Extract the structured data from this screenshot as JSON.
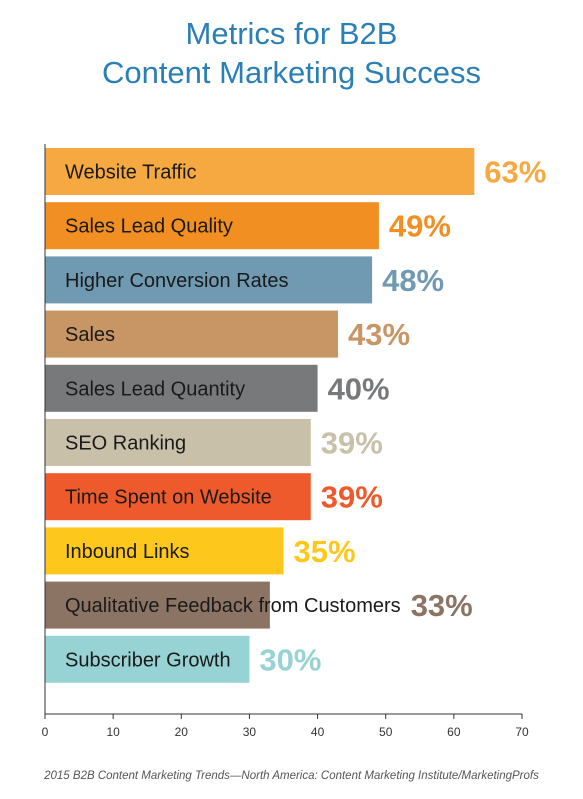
{
  "chart_data": {
    "type": "bar",
    "orientation": "horizontal",
    "title_line1": "Metrics for B2B",
    "title_line2": "Content Marketing Success",
    "categories": [
      "Website Traffic",
      "Sales Lead Quality",
      "Higher Conversion Rates",
      "Sales",
      "Sales Lead Quantity",
      "SEO Ranking",
      "Time Spent on Website",
      "Inbound Links",
      "Qualitative Feedback from Customers",
      "Subscriber Growth"
    ],
    "values": [
      63,
      49,
      48,
      43,
      40,
      39,
      39,
      35,
      33,
      30
    ],
    "value_labels": [
      "63%",
      "49%",
      "48%",
      "43%",
      "40%",
      "39%",
      "39%",
      "35%",
      "33%",
      "30%"
    ],
    "colors": [
      "#f7a941",
      "#f18f22",
      "#6f9ab2",
      "#c89565",
      "#78797b",
      "#c9c0a9",
      "#ee5a2b",
      "#fdc81b",
      "#8b7464",
      "#97d3d4"
    ],
    "xlim": [
      0,
      70
    ],
    "xticks": [
      "0",
      "10",
      "20",
      "30",
      "40",
      "50",
      "60",
      "70"
    ],
    "grid": false,
    "source": "2015 B2B Content Marketing Trends—North America: Content Marketing Institute/MarketingProfs"
  }
}
